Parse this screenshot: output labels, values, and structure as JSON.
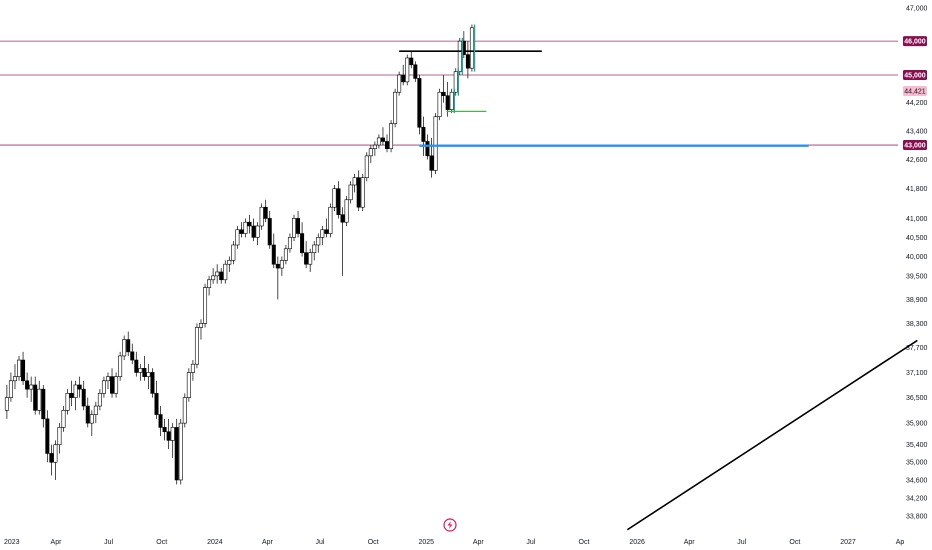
{
  "chart_data": {
    "type": "candlestick",
    "x_axis": {
      "labels": [
        "2023",
        "Apr",
        "Jul",
        "Oct",
        "2024",
        "Apr",
        "Jul",
        "Oct",
        "2025",
        "Apr",
        "Jul",
        "Oct",
        "2026",
        "Apr",
        "Jul",
        "Oct",
        "2027",
        "Ap"
      ]
    },
    "y_axis": {
      "labels": [
        "47,000",
        "44,200",
        "43,400",
        "42,600",
        "41,800",
        "41,000",
        "40,500",
        "40,000",
        "39,500",
        "38,900",
        "38,300",
        "37,700",
        "37,100",
        "36,500",
        "35,900",
        "35,400",
        "35,000",
        "34,600",
        "34,200",
        "33,800"
      ]
    },
    "horizontal_levels": [
      {
        "value": 46000,
        "label": "46,000",
        "color": "#880e4f"
      },
      {
        "value": 45000,
        "label": "45,000",
        "color": "#880e4f"
      },
      {
        "value": 43000,
        "label": "43,000",
        "color": "#880e4f"
      }
    ],
    "last_price": {
      "value": 44421,
      "label": "44,421",
      "color": "#f8bbd0"
    },
    "drawings": [
      {
        "type": "segment",
        "color": "#000000",
        "from": [
          "2024-11-15",
          45700
        ],
        "to": [
          "2025-07-20",
          45700
        ]
      },
      {
        "type": "segment",
        "color": "#4caf50",
        "from": [
          "2025-02-05",
          43950
        ],
        "to": [
          "2025-04-15",
          43950
        ]
      },
      {
        "type": "segment",
        "color": "#2196f3",
        "from": [
          "2024-12-20",
          42980
        ],
        "to": [
          "2026-10-25",
          42980
        ]
      },
      {
        "type": "segment",
        "color": "#000000",
        "from": [
          "2025-12-15",
          33500
        ],
        "to": [
          "2027-05-01",
          37880
        ]
      }
    ],
    "candles": [
      [
        "2023-01-06",
        36200,
        36800,
        36000,
        36500
      ],
      [
        "2023-01-13",
        36500,
        37100,
        36400,
        36900
      ],
      [
        "2023-01-20",
        36900,
        37300,
        36700,
        37000
      ],
      [
        "2023-01-27",
        37000,
        37500,
        36900,
        37400
      ],
      [
        "2023-02-03",
        37400,
        37600,
        36800,
        36900
      ],
      [
        "2023-02-10",
        36900,
        37100,
        36500,
        36700
      ],
      [
        "2023-02-17",
        36700,
        37000,
        36400,
        36800
      ],
      [
        "2023-02-24",
        36800,
        37000,
        36100,
        36200
      ],
      [
        "2023-03-03",
        36200,
        36900,
        36100,
        36700
      ],
      [
        "2023-03-10",
        36700,
        36800,
        35800,
        36000
      ],
      [
        "2023-03-17",
        36000,
        36200,
        35000,
        35200
      ],
      [
        "2023-03-24",
        35200,
        35400,
        34700,
        35000
      ],
      [
        "2023-03-31",
        35000,
        35500,
        34600,
        35400
      ],
      [
        "2023-04-07",
        35400,
        35900,
        35200,
        35800
      ],
      [
        "2023-04-14",
        35800,
        36300,
        35700,
        36200
      ],
      [
        "2023-04-21",
        36200,
        36700,
        36100,
        36600
      ],
      [
        "2023-04-28",
        36600,
        36900,
        36300,
        36500
      ],
      [
        "2023-05-05",
        36500,
        36900,
        36200,
        36800
      ],
      [
        "2023-05-12",
        36800,
        37000,
        36500,
        36700
      ],
      [
        "2023-05-19",
        36700,
        36900,
        36200,
        36300
      ],
      [
        "2023-05-26",
        36300,
        36500,
        35800,
        35900
      ],
      [
        "2023-06-02",
        35900,
        36200,
        35600,
        36100
      ],
      [
        "2023-06-09",
        36100,
        36400,
        35900,
        36300
      ],
      [
        "2023-06-16",
        36300,
        36700,
        36200,
        36600
      ],
      [
        "2023-06-23",
        36600,
        37000,
        36500,
        36900
      ],
      [
        "2023-06-30",
        36900,
        37100,
        36700,
        37000
      ],
      [
        "2023-07-07",
        37000,
        37200,
        36500,
        36600
      ],
      [
        "2023-07-14",
        36600,
        37100,
        36500,
        37000
      ],
      [
        "2023-07-21",
        37000,
        37600,
        36900,
        37500
      ],
      [
        "2023-07-28",
        37500,
        38000,
        37400,
        37900
      ],
      [
        "2023-08-04",
        37900,
        38100,
        37500,
        37600
      ],
      [
        "2023-08-11",
        37600,
        37800,
        37300,
        37400
      ],
      [
        "2023-08-18",
        37400,
        37600,
        37000,
        37100
      ],
      [
        "2023-08-25",
        37100,
        37300,
        36900,
        37200
      ],
      [
        "2023-09-01",
        37200,
        37500,
        36900,
        37000
      ],
      [
        "2023-09-08",
        37000,
        37300,
        36700,
        37100
      ],
      [
        "2023-09-15",
        37100,
        37200,
        36500,
        36600
      ],
      [
        "2023-09-22",
        36600,
        36900,
        36000,
        36100
      ],
      [
        "2023-09-29",
        36100,
        36300,
        35600,
        35800
      ],
      [
        "2023-10-06",
        35800,
        36000,
        35500,
        35700
      ],
      [
        "2023-10-13",
        35700,
        36000,
        35300,
        35500
      ],
      [
        "2023-10-20",
        35500,
        35900,
        35100,
        35800
      ],
      [
        "2023-10-27",
        35800,
        36000,
        34500,
        34600
      ],
      [
        "2023-11-03",
        34600,
        36000,
        34500,
        35900
      ],
      [
        "2023-11-10",
        35900,
        36600,
        35800,
        36500
      ],
      [
        "2023-11-17",
        36500,
        37200,
        36400,
        37100
      ],
      [
        "2023-11-24",
        37100,
        37400,
        36900,
        37300
      ],
      [
        "2023-12-01",
        37300,
        38300,
        37200,
        38200
      ],
      [
        "2023-12-08",
        38200,
        38400,
        37900,
        38300
      ],
      [
        "2023-12-15",
        38300,
        39300,
        38200,
        39200
      ],
      [
        "2023-12-22",
        39200,
        39500,
        39000,
        39400
      ],
      [
        "2023-12-29",
        39400,
        39700,
        39300,
        39500
      ],
      [
        "2024-01-05",
        39500,
        39800,
        39300,
        39600
      ],
      [
        "2024-01-12",
        39600,
        39700,
        39300,
        39400
      ],
      [
        "2024-01-19",
        39400,
        39900,
        39300,
        39800
      ],
      [
        "2024-01-26",
        39800,
        40000,
        39600,
        39900
      ],
      [
        "2024-02-02",
        39900,
        40400,
        39800,
        40300
      ],
      [
        "2024-02-09",
        40300,
        40800,
        40200,
        40700
      ],
      [
        "2024-02-16",
        40700,
        40900,
        40500,
        40600
      ],
      [
        "2024-02-23",
        40600,
        41000,
        40500,
        40900
      ],
      [
        "2024-03-01",
        40900,
        41100,
        40600,
        40800
      ],
      [
        "2024-03-08",
        40800,
        41000,
        40400,
        40500
      ],
      [
        "2024-03-15",
        40500,
        40900,
        40300,
        40800
      ],
      [
        "2024-03-22",
        40800,
        41400,
        40700,
        41300
      ],
      [
        "2024-03-29",
        41300,
        41500,
        40900,
        41000
      ],
      [
        "2024-04-05",
        41000,
        41200,
        40200,
        40300
      ],
      [
        "2024-04-12",
        40300,
        40600,
        39700,
        39800
      ],
      [
        "2024-04-19",
        39800,
        40000,
        38900,
        39700
      ],
      [
        "2024-04-26",
        39700,
        40000,
        39500,
        39900
      ],
      [
        "2024-05-03",
        39900,
        40300,
        39800,
        40200
      ],
      [
        "2024-05-10",
        40200,
        40600,
        40100,
        40500
      ],
      [
        "2024-05-17",
        40500,
        41100,
        40400,
        41000
      ],
      [
        "2024-05-24",
        41000,
        41200,
        40500,
        40600
      ],
      [
        "2024-05-31",
        40600,
        40900,
        40000,
        40100
      ],
      [
        "2024-06-07",
        40100,
        40400,
        39700,
        39800
      ],
      [
        "2024-06-14",
        39800,
        40200,
        39600,
        40100
      ],
      [
        "2024-06-21",
        40100,
        40400,
        39900,
        40300
      ],
      [
        "2024-06-28",
        40300,
        40600,
        40100,
        40500
      ],
      [
        "2024-07-05",
        40500,
        40800,
        40300,
        40700
      ],
      [
        "2024-07-12",
        40700,
        41000,
        40500,
        40600
      ],
      [
        "2024-07-19",
        40600,
        41400,
        40500,
        41300
      ],
      [
        "2024-07-26",
        41300,
        41900,
        41200,
        41800
      ],
      [
        "2024-08-02",
        41800,
        42000,
        41000,
        41100
      ],
      [
        "2024-08-09",
        41100,
        41300,
        39500,
        40900
      ],
      [
        "2024-08-16",
        40900,
        41600,
        40800,
        41500
      ],
      [
        "2024-08-23",
        41500,
        42000,
        41400,
        41900
      ],
      [
        "2024-08-30",
        41900,
        42200,
        41700,
        42100
      ],
      [
        "2024-09-06",
        42100,
        42300,
        41200,
        41300
      ],
      [
        "2024-09-13",
        41300,
        42200,
        41200,
        42100
      ],
      [
        "2024-09-20",
        42100,
        42800,
        42000,
        42700
      ],
      [
        "2024-09-27",
        42700,
        43000,
        42500,
        42900
      ],
      [
        "2024-10-04",
        42900,
        43100,
        42700,
        43000
      ],
      [
        "2024-10-11",
        43000,
        43300,
        42900,
        43200
      ],
      [
        "2024-10-18",
        43200,
        43500,
        43000,
        43100
      ],
      [
        "2024-10-25",
        43100,
        43300,
        42800,
        42900
      ],
      [
        "2024-11-01",
        42900,
        43700,
        42800,
        43600
      ],
      [
        "2024-11-08",
        43600,
        44600,
        43500,
        44500
      ],
      [
        "2024-11-15",
        44500,
        45100,
        44400,
        45000
      ],
      [
        "2024-11-22",
        45000,
        45300,
        44700,
        44800
      ],
      [
        "2024-11-29",
        44800,
        45600,
        44700,
        45500
      ],
      [
        "2024-12-06",
        45500,
        45700,
        45200,
        45300
      ],
      [
        "2024-12-13",
        45300,
        45400,
        44800,
        44900
      ],
      [
        "2024-12-20",
        44900,
        45000,
        43300,
        43500
      ],
      [
        "2024-12-27",
        43500,
        43800,
        42700,
        43100
      ],
      [
        "2025-01-03",
        43100,
        43300,
        42600,
        42700
      ],
      [
        "2025-01-10",
        42700,
        43200,
        42100,
        42300
      ],
      [
        "2025-01-17",
        42300,
        43900,
        42200,
        43800
      ],
      [
        "2025-01-24",
        43800,
        44600,
        43700,
        44500
      ],
      [
        "2025-01-31",
        44500,
        45000,
        44200,
        44400
      ],
      [
        "2025-02-07",
        44400,
        44800,
        43800,
        44000
      ],
      [
        "2025-02-14",
        44000,
        44600,
        43900,
        44500
      ],
      [
        "2025-02-21",
        44500,
        45200,
        44400,
        45100
      ],
      [
        "2025-02-28",
        45100,
        46100,
        45000,
        46000
      ],
      [
        "2025-03-07",
        46000,
        46300,
        45500,
        45600
      ],
      [
        "2025-03-14",
        45600,
        46000,
        44900,
        45200
      ],
      [
        "2025-03-21",
        45200,
        46500,
        45100,
        46400
      ]
    ]
  }
}
